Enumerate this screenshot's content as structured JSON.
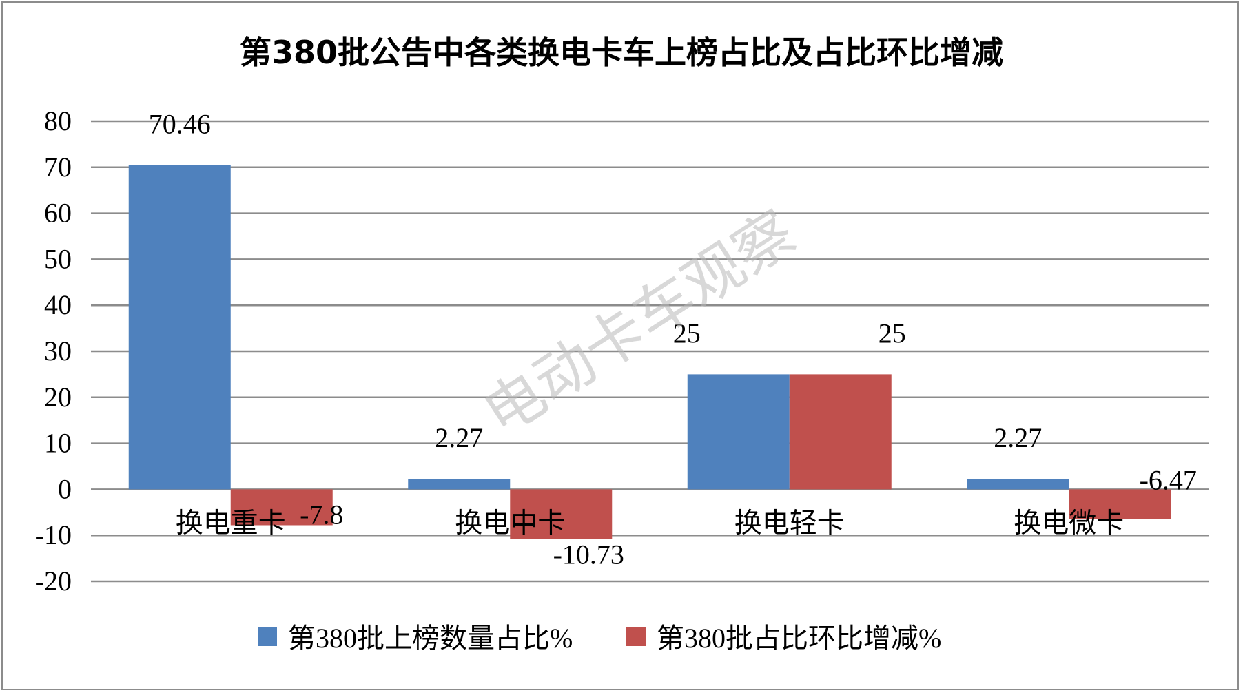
{
  "chart_data": {
    "type": "bar",
    "title": "第380批公告中各类换电卡车上榜占比及占比环比增减",
    "categories": [
      "换电重卡",
      "换电中卡",
      "换电轻卡",
      "换电微卡"
    ],
    "series": [
      {
        "name": "第380批上榜数量占比%",
        "values": [
          70.46,
          2.27,
          25,
          2.27
        ],
        "color": "#4f81bd"
      },
      {
        "name": "第380批占比环比增减%",
        "values": [
          -7.8,
          -10.73,
          25,
          -6.47
        ],
        "color": "#c0504d"
      }
    ],
    "data_labels": [
      [
        "70.46",
        "2.27",
        "25",
        "2.27"
      ],
      [
        "-7.8",
        "-10.73",
        "25",
        "-6.47"
      ]
    ],
    "y_ticks": [
      "80",
      "70",
      "60",
      "50",
      "40",
      "30",
      "20",
      "10",
      "0",
      "-10",
      "-20"
    ],
    "ylim": [
      -20,
      80
    ],
    "ytick_step": 10,
    "grid": true,
    "legend_position": "bottom",
    "xlabel": "",
    "ylabel": ""
  },
  "watermark": "电动卡车观察"
}
